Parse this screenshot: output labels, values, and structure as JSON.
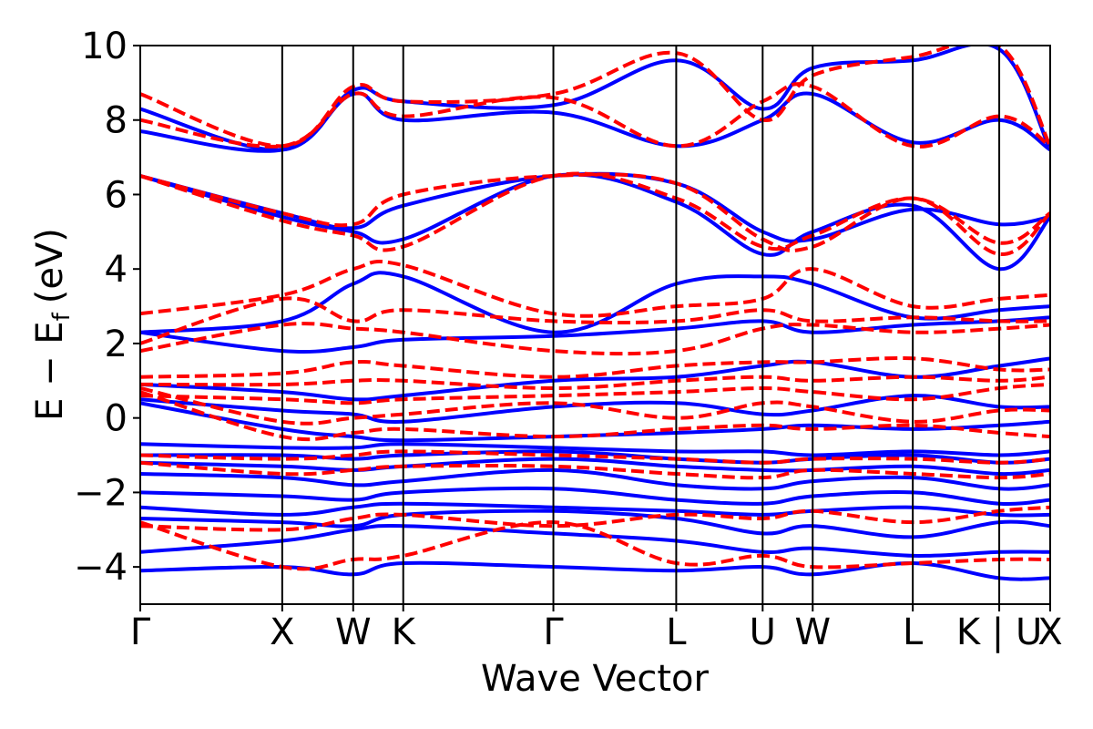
{
  "chart_data": {
    "type": "line",
    "title": "",
    "xlabel": "Wave Vector",
    "ylabel_main": "E − E",
    "ylabel_sub": "f",
    "ylabel_unit": "(eV)",
    "ylim": [
      -5,
      10
    ],
    "yticks": [
      {
        "value": -4,
        "label": "−4"
      },
      {
        "value": -2,
        "label": "−2"
      },
      {
        "value": 0,
        "label": "0"
      },
      {
        "value": 2,
        "label": "2"
      },
      {
        "value": 4,
        "label": "4"
      },
      {
        "value": 6,
        "label": "6"
      },
      {
        "value": 8,
        "label": "8"
      },
      {
        "value": 10,
        "label": "10"
      }
    ],
    "kpath": [
      {
        "label": "Γ",
        "x": 0.0
      },
      {
        "label": "X",
        "x": 0.156
      },
      {
        "label": "W",
        "x": 0.234
      },
      {
        "label": "K",
        "x": 0.289
      },
      {
        "label": "Γ",
        "x": 0.454
      },
      {
        "label": "L",
        "x": 0.589
      },
      {
        "label": "U",
        "x": 0.684
      },
      {
        "label": "W",
        "x": 0.739
      },
      {
        "label": "L",
        "x": 0.849
      },
      {
        "label": "K | U",
        "x": 0.944
      },
      {
        "label": "X",
        "x": 1.0
      }
    ],
    "xlim": [
      0,
      1
    ],
    "grid": false,
    "legend": null,
    "series": [
      {
        "style": "solid",
        "color": "#0000ff",
        "bands": [
          [
            -3.6,
            -3.3,
            -3.0,
            -2.9,
            -3.1,
            -3.3,
            -3.6,
            -3.5,
            -3.7,
            -3.6,
            -3.6
          ],
          [
            -4.1,
            -4.0,
            -4.2,
            -3.9,
            -4.0,
            -4.1,
            -4.0,
            -4.2,
            -3.9,
            -4.3,
            -4.3
          ],
          [
            -2.7,
            -2.8,
            -2.9,
            -2.6,
            -2.5,
            -2.7,
            -3.1,
            -2.9,
            -3.2,
            -2.8,
            -2.9
          ],
          [
            -2.4,
            -2.6,
            -2.4,
            -2.3,
            -2.4,
            -2.5,
            -2.6,
            -2.5,
            -2.4,
            -2.6,
            -2.6
          ],
          [
            -2.0,
            -2.1,
            -2.2,
            -2.0,
            -1.9,
            -2.2,
            -2.3,
            -2.1,
            -2.0,
            -2.3,
            -2.2
          ],
          [
            -1.5,
            -1.6,
            -1.8,
            -1.7,
            -1.4,
            -1.8,
            -1.9,
            -1.7,
            -1.6,
            -1.9,
            -1.8
          ],
          [
            -1.2,
            -1.3,
            -1.4,
            -1.3,
            -1.1,
            -1.3,
            -1.4,
            -1.4,
            -1.3,
            -1.5,
            -1.4
          ],
          [
            -1.0,
            -1.0,
            -1.1,
            -1.0,
            -0.9,
            -1.1,
            -1.2,
            -1.1,
            -1.0,
            -1.2,
            -1.1
          ],
          [
            -0.7,
            -0.8,
            -0.8,
            -0.7,
            -0.8,
            -0.9,
            -0.9,
            -1.0,
            -0.9,
            -1.0,
            -0.9
          ],
          [
            0.4,
            -0.3,
            -0.5,
            -0.6,
            -0.5,
            -0.4,
            -0.3,
            -0.2,
            -0.3,
            -0.2,
            -0.1
          ],
          [
            0.5,
            0.2,
            0.1,
            -0.1,
            0.3,
            0.4,
            0.1,
            0.2,
            0.6,
            0.3,
            0.3
          ],
          [
            0.9,
            0.7,
            0.5,
            0.6,
            1.0,
            1.1,
            1.4,
            1.5,
            1.1,
            1.4,
            1.6
          ],
          [
            2.3,
            1.8,
            1.9,
            2.1,
            2.2,
            2.4,
            2.6,
            2.3,
            2.5,
            2.6,
            2.7
          ],
          [
            2.3,
            2.6,
            3.6,
            3.8,
            2.3,
            3.6,
            3.8,
            3.6,
            2.7,
            2.9,
            3.0
          ],
          [
            6.5,
            5.4,
            5.0,
            4.8,
            6.5,
            5.8,
            4.4,
            5.0,
            5.7,
            4.0,
            5.4
          ],
          [
            6.5,
            5.5,
            5.1,
            5.7,
            6.5,
            6.3,
            5.0,
            4.8,
            5.6,
            5.2,
            5.4
          ],
          [
            7.7,
            7.2,
            8.7,
            8.0,
            8.2,
            7.3,
            8.0,
            8.7,
            7.4,
            8.0,
            7.2
          ],
          [
            8.3,
            7.2,
            8.8,
            8.5,
            8.4,
            9.6,
            8.3,
            9.4,
            9.6,
            9.9,
            7.2
          ]
        ]
      },
      {
        "style": "dashed",
        "color": "#ff0000",
        "bands": [
          [
            -2.8,
            -4.0,
            -3.8,
            -3.7,
            -2.8,
            -3.9,
            -3.7,
            -4.0,
            -3.9,
            -3.8,
            -3.8
          ],
          [
            -2.9,
            -3.0,
            -2.7,
            -2.6,
            -2.9,
            -2.6,
            -2.7,
            -2.5,
            -2.8,
            -2.5,
            -2.4
          ],
          [
            -1.2,
            -1.5,
            -1.4,
            -1.3,
            -1.3,
            -1.5,
            -1.6,
            -1.4,
            -1.5,
            -1.6,
            -1.5
          ],
          [
            -1.0,
            -1.1,
            -1.0,
            -0.9,
            -1.0,
            -1.1,
            -1.2,
            -1.1,
            -1.1,
            -1.2,
            -1.1
          ],
          [
            0.7,
            -0.5,
            -0.4,
            -0.3,
            -0.5,
            -0.3,
            -0.2,
            -0.3,
            -0.2,
            -0.4,
            -0.5
          ],
          [
            0.8,
            -0.1,
            0.0,
            0.1,
            0.4,
            0.0,
            0.4,
            0.3,
            -0.1,
            0.2,
            0.2
          ],
          [
            0.6,
            0.5,
            0.4,
            0.5,
            0.6,
            0.7,
            0.8,
            0.7,
            0.5,
            0.8,
            0.9
          ],
          [
            0.9,
            0.9,
            1.0,
            1.0,
            0.8,
            1.0,
            1.1,
            1.0,
            1.1,
            1.0,
            1.1
          ],
          [
            1.1,
            1.2,
            1.5,
            1.4,
            1.1,
            1.4,
            1.5,
            1.5,
            1.6,
            1.3,
            1.3
          ],
          [
            1.8,
            2.5,
            2.4,
            2.3,
            1.8,
            1.8,
            2.4,
            2.5,
            2.3,
            2.4,
            2.5
          ],
          [
            2.0,
            3.2,
            2.6,
            2.9,
            2.6,
            2.6,
            2.9,
            2.6,
            2.7,
            2.6,
            2.6
          ],
          [
            2.8,
            3.3,
            4.0,
            4.1,
            2.8,
            3.0,
            3.2,
            4.0,
            3.0,
            3.2,
            3.3
          ],
          [
            6.5,
            5.3,
            4.9,
            4.6,
            6.5,
            5.9,
            4.6,
            4.9,
            5.9,
            4.7,
            5.5
          ],
          [
            6.5,
            5.5,
            5.2,
            6.0,
            6.5,
            6.3,
            4.8,
            4.6,
            5.9,
            4.4,
            5.5
          ],
          [
            8.0,
            7.3,
            8.7,
            8.1,
            8.6,
            7.3,
            8.5,
            8.9,
            7.3,
            8.1,
            7.3
          ],
          [
            8.7,
            7.3,
            8.9,
            8.5,
            8.7,
            9.8,
            8.0,
            9.2,
            9.7,
            10.0,
            7.3
          ]
        ]
      }
    ]
  }
}
